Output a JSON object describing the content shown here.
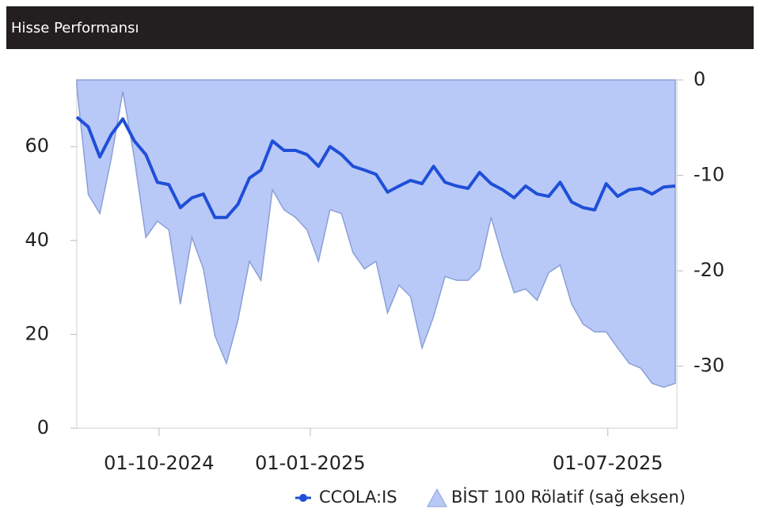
{
  "chart_data": {
    "type": "line",
    "title": "Hisse Performansı",
    "x": [
      "2024-08-12",
      "2024-08-19",
      "2024-08-26",
      "2024-09-02",
      "2024-09-09",
      "2024-09-16",
      "2024-09-23",
      "2024-09-30",
      "2024-10-07",
      "2024-10-14",
      "2024-10-21",
      "2024-10-28",
      "2024-11-04",
      "2024-11-11",
      "2024-11-18",
      "2024-11-25",
      "2024-12-02",
      "2024-12-09",
      "2024-12-16",
      "2024-12-23",
      "2024-12-30",
      "2025-01-06",
      "2025-01-13",
      "2025-01-20",
      "2025-01-27",
      "2025-02-03",
      "2025-02-10",
      "2025-02-17",
      "2025-02-24",
      "2025-03-03",
      "2025-03-10",
      "2025-03-17",
      "2025-03-24",
      "2025-03-31",
      "2025-04-07",
      "2025-04-14",
      "2025-04-21",
      "2025-04-28",
      "2025-05-05",
      "2025-05-12",
      "2025-05-19",
      "2025-05-26",
      "2025-06-02",
      "2025-06-09",
      "2025-06-16",
      "2025-06-23",
      "2025-06-30",
      "2025-07-07",
      "2025-07-14",
      "2025-07-21",
      "2025-07-28",
      "2025-08-04",
      "2025-08-11"
    ],
    "series": [
      {
        "name": "CCOLA:IS",
        "color": "#1f4fd8",
        "kind": "line",
        "values": [
          66.3,
          64.2,
          57.8,
          62.6,
          65.9,
          61.2,
          58.3,
          52.4,
          51.9,
          47.0,
          49.1,
          49.9,
          44.9,
          44.9,
          47.7,
          53.3,
          55.0,
          61.2,
          59.2,
          59.2,
          58.3,
          55.8,
          60.0,
          58.3,
          55.8,
          55.0,
          54.1,
          50.3,
          51.6,
          52.8,
          52.1,
          55.8,
          52.4,
          51.6,
          51.1,
          54.5,
          52.1,
          50.8,
          49.1,
          51.6,
          49.9,
          49.4,
          52.4,
          48.2,
          47.0,
          46.5,
          52.1,
          49.4,
          50.8,
          51.1,
          49.9,
          51.4,
          51.6
        ]
      },
      {
        "name": "BİST 100 Rölatif (sağ eksen)",
        "color": "#b9c9f7",
        "kind": "area",
        "axis": "y2",
        "values": [
          -0.7,
          -12,
          -14,
          -8.2,
          -1.2,
          -8.2,
          -16.5,
          -14.8,
          -15.7,
          -23.5,
          -16.5,
          -19.8,
          -26.8,
          -29.7,
          -25.2,
          -19.0,
          -21.0,
          -11.5,
          -13.6,
          -14.4,
          -15.7,
          -19.0,
          -13.6,
          -14.0,
          -18.1,
          -19.8,
          -19.0,
          -24.4,
          -21.5,
          -22.7,
          -28.1,
          -24.8,
          -20.6,
          -21.0,
          -21.0,
          -19.8,
          -14.4,
          -18.6,
          -22.3,
          -21.9,
          -23.1,
          -20.2,
          -19.4,
          -23.5,
          -25.6,
          -26.4,
          -26.4,
          -28.1,
          -29.7,
          -30.2,
          -31.8,
          -32.2,
          -31.8
        ]
      }
    ],
    "xlim": [
      "2024-08-12",
      "2025-08-12"
    ],
    "xticks": [
      {
        "value": "2024-10-01",
        "label": "01-10-2024"
      },
      {
        "value": "2025-01-01",
        "label": "01-01-2025"
      },
      {
        "value": "2025-07-01",
        "label": "01-07-2025"
      }
    ],
    "ylim": [
      0,
      74.2
    ],
    "yticks": [
      0,
      20,
      40,
      60
    ],
    "y2lim": [
      -36.5,
      0
    ],
    "y2ticks": [
      0,
      -10,
      -20,
      -30
    ]
  }
}
